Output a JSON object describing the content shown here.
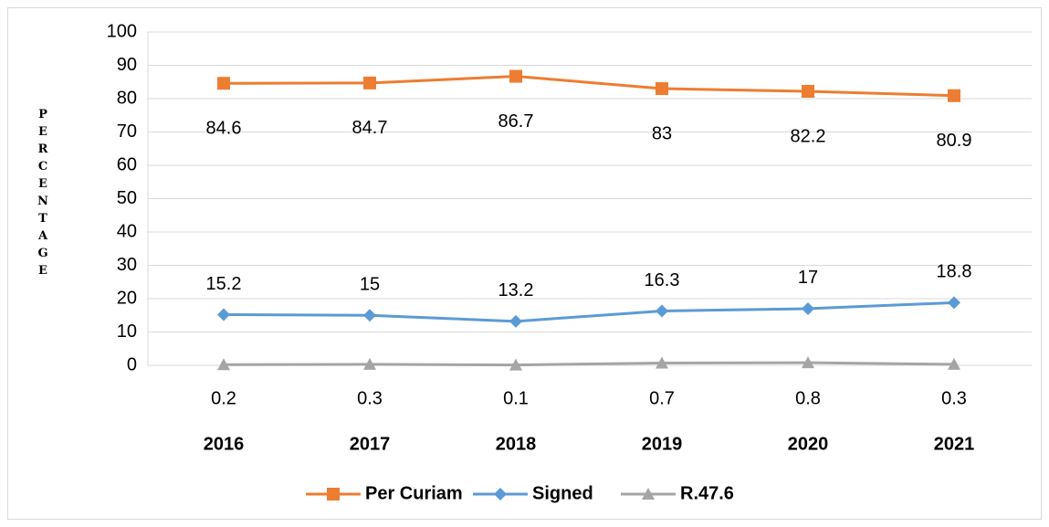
{
  "chart_data": {
    "type": "line",
    "y_label": "PERCENTAGE",
    "categories": [
      "2016",
      "2017",
      "2018",
      "2019",
      "2020",
      "2021"
    ],
    "series": [
      {
        "name": "Per Curiam",
        "color": "#ed7d31",
        "marker": "square",
        "values": [
          84.6,
          84.7,
          86.7,
          83,
          82.2,
          80.9
        ]
      },
      {
        "name": "Signed",
        "color": "#5b9bd5",
        "marker": "diamond",
        "values": [
          15.2,
          15,
          13.2,
          16.3,
          17,
          18.8
        ]
      },
      {
        "name": "R.47.6",
        "color": "#a5a5a5",
        "marker": "triangle",
        "values": [
          0.2,
          0.3,
          0.1,
          0.7,
          0.8,
          0.3
        ]
      }
    ],
    "ylim": [
      0,
      100
    ],
    "yticks": [
      0,
      10,
      20,
      30,
      40,
      50,
      60,
      70,
      80,
      90,
      100
    ],
    "grid": true,
    "legend": "bottom",
    "data_labels": true
  }
}
